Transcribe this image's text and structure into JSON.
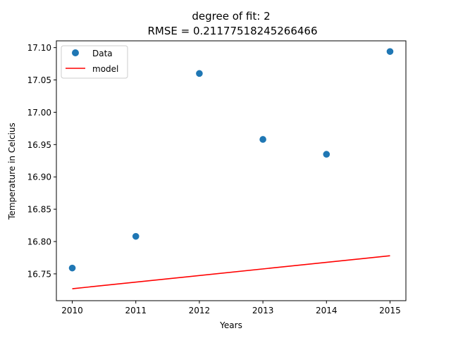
{
  "chart_data": {
    "type": "scatter",
    "title": "degree of fit: 2",
    "subtitle": "RMSE = 0.21177518245266466",
    "xlabel": "Years",
    "ylabel": "Temperature in Celcius",
    "xlim": [
      2009.75,
      2015.25
    ],
    "ylim": [
      16.7085,
      17.1105
    ],
    "xticks": [
      2010,
      2011,
      2012,
      2013,
      2014,
      2015
    ],
    "xtick_labels": [
      "2010",
      "2011",
      "2012",
      "2013",
      "2014",
      "2015"
    ],
    "yticks": [
      16.75,
      16.8,
      16.85,
      16.9,
      16.95,
      17.0,
      17.05,
      17.1
    ],
    "ytick_labels": [
      "16.75",
      "16.80",
      "16.85",
      "16.90",
      "16.95",
      "17.00",
      "17.05",
      "17.10"
    ],
    "grid": false,
    "legend_position": "upper-left",
    "series": [
      {
        "name": "Data",
        "kind": "scatter",
        "color": "#1f77b4",
        "x": [
          2010,
          2011,
          2012,
          2013,
          2014,
          2015
        ],
        "y": [
          16.759,
          16.808,
          17.06,
          16.958,
          16.935,
          17.094
        ]
      },
      {
        "name": "model",
        "kind": "line",
        "color": "#ff0000",
        "x": [
          2010,
          2015
        ],
        "y": [
          16.727,
          16.778
        ]
      }
    ]
  }
}
